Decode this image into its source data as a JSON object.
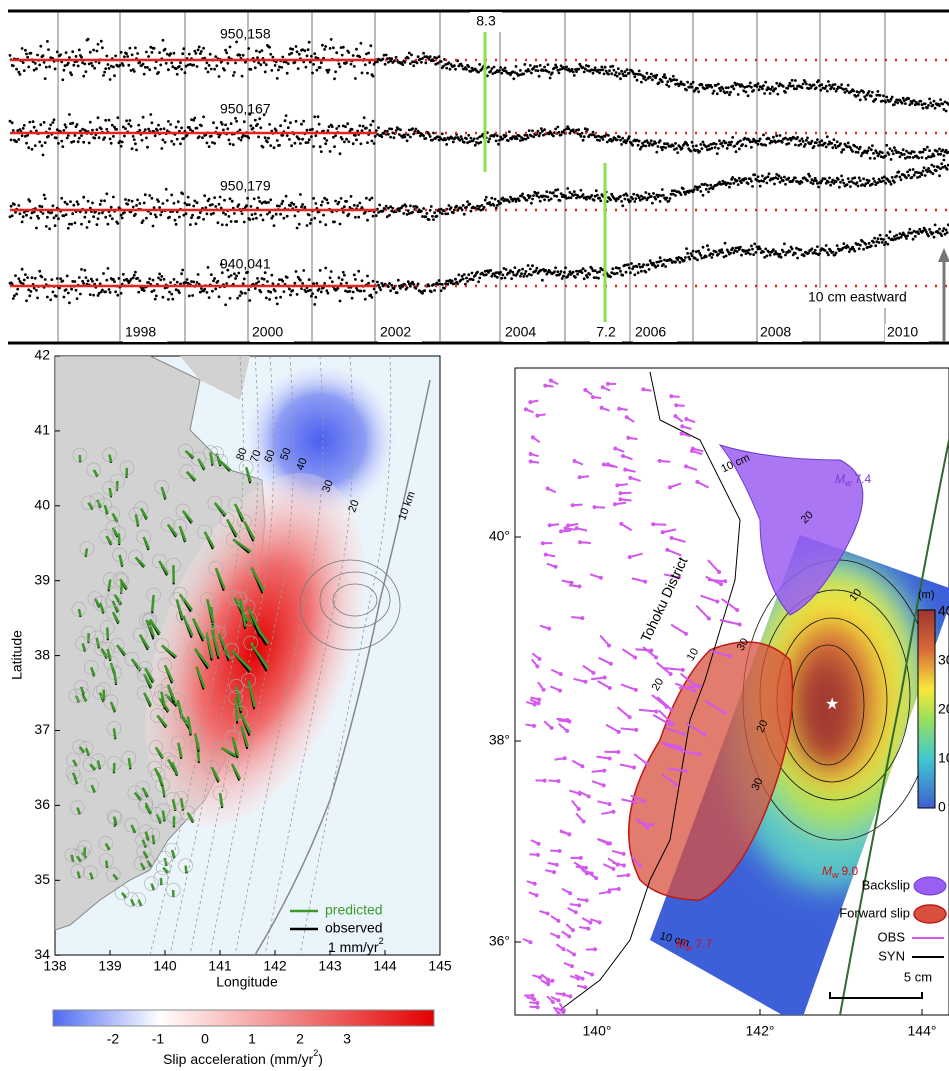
{
  "panel_a": {
    "station_labels": [
      "950,158",
      "950,167",
      "950,179",
      "940,041"
    ],
    "year_labels": [
      "1998",
      "2000",
      "2002",
      "2004",
      "2006",
      "2008",
      "2010"
    ],
    "event_labels": [
      "8.3",
      "7.2"
    ],
    "scale_label": "10 cm eastward"
  },
  "panel_b": {
    "x_axis_label": "Longitude",
    "y_axis_label": "Latitude",
    "xticks": [
      "138",
      "139",
      "140",
      "141",
      "142",
      "143",
      "144",
      "145"
    ],
    "yticks": [
      "42",
      "41",
      "40",
      "39",
      "38",
      "37",
      "36",
      "35",
      "34"
    ],
    "contour_labels": [
      "80",
      "70",
      "60",
      "50",
      "40",
      "30",
      "20",
      "10 km"
    ],
    "legend": [
      "predicted",
      "observed"
    ],
    "scale_label": {
      "text": "1 mm/yr",
      "superscript": "2"
    },
    "colorbar_ticks": [
      "-2",
      "-1",
      "0",
      "1",
      "2",
      "3"
    ],
    "colorbar_label": {
      "text": "Slip acceleration (mm/yr",
      "superscript": "2",
      "close": ")"
    }
  },
  "panel_c": {
    "yticks": [
      "40°",
      "38°",
      "36°"
    ],
    "xticks": [
      "140°",
      "142°",
      "144°"
    ],
    "region_label": "Tohoku District",
    "contour_labels": [
      "10 cm",
      "20",
      "10",
      "30",
      "20",
      "30",
      "20",
      "10",
      "10 cm"
    ],
    "magnitudes": [
      {
        "symbol": "M",
        "subscript": "w",
        "value": "7.4"
      },
      {
        "symbol": "M",
        "subscript": "w",
        "value": "9.0"
      },
      {
        "symbol": "M",
        "subscript": "w",
        "value": "7.7"
      }
    ],
    "colorbar_unit": "(m)",
    "colorbar_ticks": [
      "40",
      "30",
      "20",
      "10",
      "0"
    ],
    "legend": [
      "Backslip",
      "Forward slip",
      "OBS",
      "SYN"
    ],
    "scale_label": "5 cm"
  }
}
